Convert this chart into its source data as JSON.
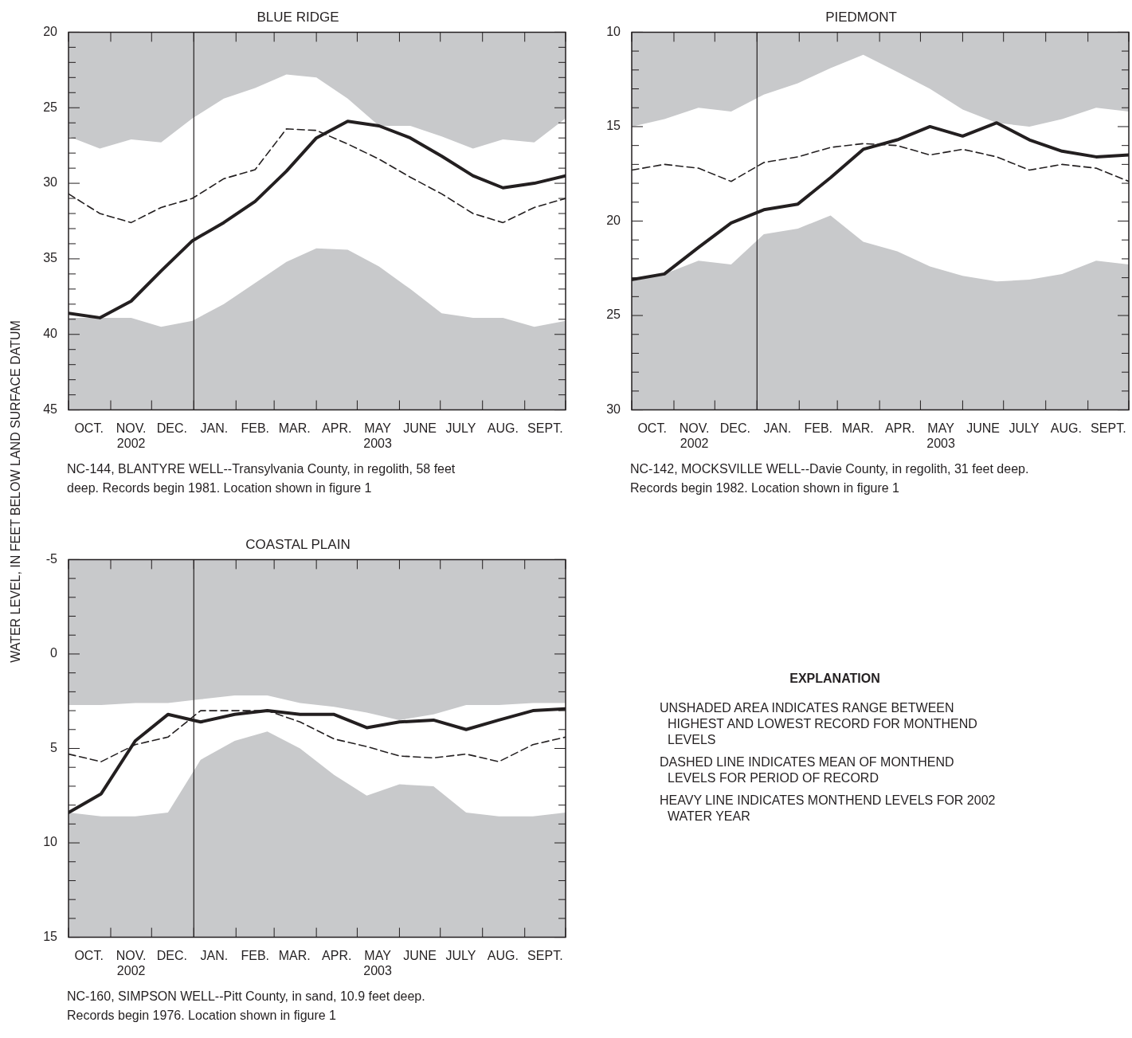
{
  "chart_data": [
    {
      "type": "line",
      "title": "BLUE RIDGE",
      "ylabel": "WATER LEVEL, IN FEET BELOW LAND SURFACE DATUM",
      "annotations": [
        "NC-144, BLANTYRE WELL--Transylvania County, in regolith, 58 feet deep. Records begin 1981. Location shown in figure 1"
      ],
      "x": [
        "2002-10-01",
        "2002-10-24",
        "2002-11-16",
        "2002-12-08",
        "2002-12-31",
        "2003-01-23",
        "2003-02-15",
        "2003-03-10",
        "2003-04-01",
        "2003-04-24",
        "2003-05-17",
        "2003-06-09",
        "2003-07-02",
        "2003-07-25",
        "2003-08-16",
        "2003-09-08",
        "2003-10-01"
      ],
      "series": [
        {
          "type": "line",
          "color": "#231f20",
          "line_style": "dashed",
          "values": [
            30.7,
            32.0,
            32.6,
            31.6,
            31.0,
            29.7,
            29.1,
            26.4,
            26.5,
            27.4,
            28.4,
            29.6,
            30.7,
            32.0,
            32.6,
            31.6,
            31.0
          ],
          "lower": [
            26.9,
            27.7,
            27.1,
            27.3,
            25.7,
            24.4,
            23.7,
            22.8,
            23.0,
            24.4,
            26.2,
            26.2,
            26.9,
            27.7,
            27.1,
            27.3,
            25.7
          ],
          "upper": [
            38.9,
            38.9,
            38.9,
            39.5,
            39.1,
            38.0,
            36.6,
            35.2,
            34.3,
            34.4,
            35.5,
            37.0,
            38.6,
            38.9,
            38.9,
            39.5,
            39.1
          ]
        },
        {
          "type": "line",
          "color": "#231f20",
          "line_style": "solid",
          "values": [
            38.6,
            38.9,
            37.8,
            35.8,
            33.8,
            32.6,
            31.2,
            29.2,
            27.0,
            25.9,
            26.2,
            27.0,
            28.2,
            29.5,
            30.3,
            30.0,
            29.5
          ]
        }
      ],
      "xlim": [
        "2002-10-01",
        "2003-10-01"
      ],
      "xticks": [
        {
          "value": "2002-10-01",
          "label": null
        },
        {
          "value": "2002-10-16",
          "label": "OCT."
        },
        {
          "value": "2002-11-01",
          "label": null
        },
        {
          "value": "2002-11-16",
          "label": "NOV.\n2002"
        },
        {
          "value": "2002-12-01",
          "label": null
        },
        {
          "value": "2002-12-16",
          "label": "DEC."
        },
        {
          "value": "2003-01-01",
          "label": null
        },
        {
          "value": "2003-01-16",
          "label": "JAN."
        },
        {
          "value": "2003-02-01",
          "label": null
        },
        {
          "value": "2003-02-15",
          "label": "FEB."
        },
        {
          "value": "2003-03-01",
          "label": null
        },
        {
          "value": "2003-03-16",
          "label": "MAR."
        },
        {
          "value": "2003-04-01",
          "label": null
        },
        {
          "value": "2003-04-16",
          "label": "APR."
        },
        {
          "value": "2003-05-01",
          "label": null
        },
        {
          "value": "2003-05-16",
          "label": "MAY\n2003"
        },
        {
          "value": "2003-06-01",
          "label": null
        },
        {
          "value": "2003-06-16",
          "label": "JUNE"
        },
        {
          "value": "2003-07-01",
          "label": null
        },
        {
          "value": "2003-07-16",
          "label": "JULY"
        },
        {
          "value": "2003-08-01",
          "label": null
        },
        {
          "value": "2003-08-16",
          "label": "AUG."
        },
        {
          "value": "2003-09-01",
          "label": null
        },
        {
          "value": "2003-09-16",
          "label": "SEPT."
        },
        {
          "value": "2003-10-01",
          "label": null
        }
      ],
      "ylim": [
        45,
        20
      ],
      "yticks": [
        20,
        {
          "value": 21,
          "label": null
        },
        {
          "value": 22,
          "label": null
        },
        {
          "value": 23,
          "label": null
        },
        {
          "value": 24,
          "label": null
        },
        25,
        {
          "value": 26,
          "label": null
        },
        {
          "value": 27,
          "label": null
        },
        {
          "value": 28,
          "label": null
        },
        {
          "value": 29,
          "label": null
        },
        30,
        {
          "value": 31,
          "label": null
        },
        {
          "value": 32,
          "label": null
        },
        {
          "value": 33,
          "label": null
        },
        {
          "value": 34,
          "label": null
        },
        35,
        {
          "value": 36,
          "label": null
        },
        {
          "value": 37,
          "label": null
        },
        {
          "value": 38,
          "label": null
        },
        {
          "value": 39,
          "label": null
        },
        40,
        {
          "value": 41,
          "label": null
        },
        {
          "value": 42,
          "label": null
        },
        {
          "value": 43,
          "label": null
        },
        {
          "value": 44,
          "label": null
        },
        45
      ],
      "ref_lines": [
        {
          "axis": "x",
          "value": "2003-01-01",
          "color": "#231f20"
        }
      ]
    },
    {
      "type": "line",
      "title": "PIEDMONT",
      "annotations": [
        "NC-142, MOCKSVILLE WELL--Davie County, in regolith, 31 feet deep. Records begin 1982. Location shown in figure 1"
      ],
      "x": [
        "2002-10-01",
        "2002-10-25",
        "2002-11-19",
        "2002-12-13",
        "2003-01-06",
        "2003-01-31",
        "2003-02-24",
        "2003-03-20",
        "2003-04-14",
        "2003-05-08",
        "2003-06-01",
        "2003-06-26",
        "2003-07-20",
        "2003-08-13",
        "2003-09-07",
        "2003-10-01"
      ],
      "series": [
        {
          "type": "line",
          "color": "#231f20",
          "line_style": "dashed",
          "values": [
            17.3,
            17.0,
            17.2,
            17.9,
            16.9,
            16.6,
            16.1,
            15.9,
            16.0,
            16.5,
            16.2,
            16.6,
            17.3,
            17.0,
            17.2,
            17.9
          ],
          "lower": [
            15.0,
            14.6,
            14.0,
            14.2,
            13.3,
            12.7,
            11.9,
            11.2,
            12.1,
            13.0,
            14.1,
            14.8,
            15.0,
            14.6,
            14.0,
            14.2
          ],
          "upper": [
            23.2,
            22.8,
            22.1,
            22.3,
            20.7,
            20.4,
            19.7,
            21.1,
            21.6,
            22.4,
            22.9,
            23.2,
            23.1,
            22.8,
            22.1,
            22.3
          ]
        },
        {
          "type": "line",
          "color": "#231f20",
          "line_style": "solid",
          "values": [
            23.1,
            22.8,
            21.4,
            20.1,
            19.4,
            19.1,
            17.7,
            16.2,
            15.7,
            15.0,
            15.5,
            14.8,
            15.7,
            16.3,
            16.6,
            16.5
          ]
        }
      ],
      "xlim": [
        "2002-10-01",
        "2003-10-01"
      ],
      "xticks": [
        {
          "value": "2002-10-01",
          "label": null
        },
        {
          "value": "2002-10-16",
          "label": "OCT."
        },
        {
          "value": "2002-11-01",
          "label": null
        },
        {
          "value": "2002-11-16",
          "label": "NOV.\n2002"
        },
        {
          "value": "2002-12-01",
          "label": null
        },
        {
          "value": "2002-12-16",
          "label": "DEC."
        },
        {
          "value": "2003-01-01",
          "label": null
        },
        {
          "value": "2003-01-16",
          "label": "JAN."
        },
        {
          "value": "2003-02-01",
          "label": null
        },
        {
          "value": "2003-02-15",
          "label": "FEB."
        },
        {
          "value": "2003-03-01",
          "label": null
        },
        {
          "value": "2003-03-16",
          "label": "MAR."
        },
        {
          "value": "2003-04-01",
          "label": null
        },
        {
          "value": "2003-04-16",
          "label": "APR."
        },
        {
          "value": "2003-05-01",
          "label": null
        },
        {
          "value": "2003-05-16",
          "label": "MAY\n2003"
        },
        {
          "value": "2003-06-01",
          "label": null
        },
        {
          "value": "2003-06-16",
          "label": "JUNE"
        },
        {
          "value": "2003-07-01",
          "label": null
        },
        {
          "value": "2003-07-16",
          "label": "JULY"
        },
        {
          "value": "2003-08-01",
          "label": null
        },
        {
          "value": "2003-08-16",
          "label": "AUG."
        },
        {
          "value": "2003-09-01",
          "label": null
        },
        {
          "value": "2003-09-16",
          "label": "SEPT."
        },
        {
          "value": "2003-10-01",
          "label": null
        }
      ],
      "ylim": [
        30,
        10
      ],
      "yticks": [
        10,
        {
          "value": 11,
          "label": null
        },
        {
          "value": 12,
          "label": null
        },
        {
          "value": 13,
          "label": null
        },
        {
          "value": 14,
          "label": null
        },
        15,
        {
          "value": 16,
          "label": null
        },
        {
          "value": 17,
          "label": null
        },
        {
          "value": 18,
          "label": null
        },
        {
          "value": 19,
          "label": null
        },
        20,
        {
          "value": 21,
          "label": null
        },
        {
          "value": 22,
          "label": null
        },
        {
          "value": 23,
          "label": null
        },
        {
          "value": 24,
          "label": null
        },
        25,
        {
          "value": 26,
          "label": null
        },
        {
          "value": 27,
          "label": null
        },
        {
          "value": 28,
          "label": null
        },
        {
          "value": 29,
          "label": null
        },
        30
      ],
      "ref_lines": [
        {
          "axis": "x",
          "value": "2003-01-01",
          "color": "#231f20"
        }
      ]
    },
    {
      "type": "line",
      "title": "COASTAL PLAIN",
      "annotations": [
        "NC-160, SIMPSON WELL--Pitt County, in sand, 10.9 feet deep. Records begin 1976. Location shown in figure 1"
      ],
      "x": [
        "2002-10-01",
        "2002-10-25",
        "2002-11-19",
        "2002-12-13",
        "2003-01-06",
        "2003-01-31",
        "2003-02-24",
        "2003-03-20",
        "2003-04-14",
        "2003-05-08",
        "2003-06-01",
        "2003-06-26",
        "2003-07-20",
        "2003-08-13",
        "2003-09-07",
        "2003-10-01"
      ],
      "series": [
        {
          "type": "line",
          "color": "#231f20",
          "line_style": "dashed",
          "values": [
            5.3,
            5.7,
            4.8,
            4.4,
            3.0,
            3.0,
            3.0,
            3.6,
            4.5,
            4.9,
            5.4,
            5.5,
            5.3,
            5.7,
            4.8,
            4.4
          ],
          "lower": [
            2.7,
            2.7,
            2.6,
            2.6,
            2.4,
            2.2,
            2.2,
            2.6,
            2.8,
            3.1,
            3.5,
            3.2,
            2.7,
            2.7,
            2.6,
            2.6
          ],
          "upper": [
            8.4,
            8.6,
            8.6,
            8.4,
            5.6,
            4.6,
            4.1,
            5.0,
            6.4,
            7.5,
            6.9,
            7.0,
            8.4,
            8.6,
            8.6,
            8.4
          ]
        },
        {
          "type": "line",
          "color": "#231f20",
          "line_style": "solid",
          "values": [
            8.4,
            7.4,
            4.6,
            3.2,
            3.6,
            3.2,
            3.0,
            3.2,
            3.2,
            3.9,
            3.6,
            3.5,
            4.0,
            3.5,
            3.0,
            2.9
          ]
        }
      ],
      "xlim": [
        "2002-10-01",
        "2003-10-01"
      ],
      "xticks": [
        {
          "value": "2002-10-01",
          "label": null
        },
        {
          "value": "2002-10-16",
          "label": "OCT."
        },
        {
          "value": "2002-11-01",
          "label": null
        },
        {
          "value": "2002-11-16",
          "label": "NOV.\n2002"
        },
        {
          "value": "2002-12-01",
          "label": null
        },
        {
          "value": "2002-12-16",
          "label": "DEC."
        },
        {
          "value": "2003-01-01",
          "label": null
        },
        {
          "value": "2003-01-16",
          "label": "JAN."
        },
        {
          "value": "2003-02-01",
          "label": null
        },
        {
          "value": "2003-02-15",
          "label": "FEB."
        },
        {
          "value": "2003-03-01",
          "label": null
        },
        {
          "value": "2003-03-16",
          "label": "MAR."
        },
        {
          "value": "2003-04-01",
          "label": null
        },
        {
          "value": "2003-04-16",
          "label": "APR."
        },
        {
          "value": "2003-05-01",
          "label": null
        },
        {
          "value": "2003-05-16",
          "label": "MAY\n2003"
        },
        {
          "value": "2003-06-01",
          "label": null
        },
        {
          "value": "2003-06-16",
          "label": "JUNE"
        },
        {
          "value": "2003-07-01",
          "label": null
        },
        {
          "value": "2003-07-16",
          "label": "JULY"
        },
        {
          "value": "2003-08-01",
          "label": null
        },
        {
          "value": "2003-08-16",
          "label": "AUG."
        },
        {
          "value": "2003-09-01",
          "label": null
        },
        {
          "value": "2003-09-16",
          "label": "SEPT."
        },
        {
          "value": "2003-10-01",
          "label": null
        }
      ],
      "ylim": [
        15,
        -5
      ],
      "yticks": [
        -5,
        {
          "value": -4,
          "label": null
        },
        {
          "value": -3,
          "label": null
        },
        {
          "value": -2,
          "label": null
        },
        {
          "value": -1,
          "label": null
        },
        0,
        {
          "value": 1,
          "label": null
        },
        {
          "value": 2,
          "label": null
        },
        {
          "value": 3,
          "label": null
        },
        {
          "value": 4,
          "label": null
        },
        5,
        {
          "value": 6,
          "label": null
        },
        {
          "value": 7,
          "label": null
        },
        {
          "value": 8,
          "label": null
        },
        {
          "value": 9,
          "label": null
        },
        10,
        {
          "value": 11,
          "label": null
        },
        {
          "value": 12,
          "label": null
        },
        {
          "value": 13,
          "label": null
        },
        {
          "value": 14,
          "label": null
        },
        15
      ],
      "ref_lines": [
        {
          "axis": "x",
          "value": "2003-01-01",
          "color": "#231f20"
        }
      ]
    },
    {
      "type": "other",
      "title": "EXPLANATION",
      "annotations": [
        "UNSHADED AREA INDICATES RANGE BETWEEN HIGHEST AND LOWEST RECORD FOR MONTHEND LEVELS",
        "DASHED LINE INDICATES MEAN OF MONTHEND LEVELS FOR PERIOD OF RECORD",
        "HEAVY LINE INDICATES MONTHEND LEVELS FOR 2002 WATER YEAR"
      ]
    }
  ]
}
